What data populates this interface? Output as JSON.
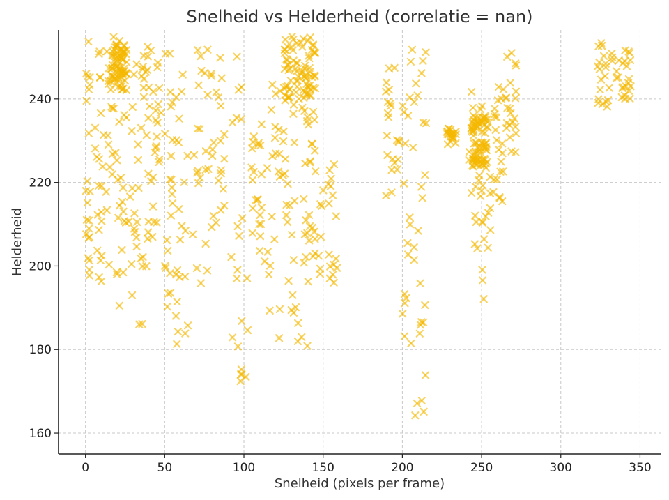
{
  "chart_data": {
    "type": "scatter",
    "title": "Snelheid vs Helderheid (correlatie = nan)",
    "xlabel": "Snelheid (pixels per frame)",
    "ylabel": "Helderheid",
    "xlim": [
      -17,
      363
    ],
    "ylim": [
      155,
      256.5
    ],
    "xticks": [
      0,
      50,
      100,
      150,
      200,
      250,
      300,
      350
    ],
    "yticks": [
      160,
      180,
      200,
      220,
      240
    ],
    "grid": true,
    "marker": "x",
    "color": "#f5b800",
    "clusters": [
      {
        "x": [
          0,
          3
        ],
        "y": [
          186,
          254
        ]
      },
      {
        "x": [
          6,
          12
        ],
        "y": [
          196,
          254
        ]
      },
      {
        "x": [
          13,
          19
        ],
        "y": [
          200,
          255
        ]
      },
      {
        "x": [
          19,
          26
        ],
        "y": [
          190,
          255
        ]
      },
      {
        "x": [
          27,
          36
        ],
        "y": [
          184,
          250
        ]
      },
      {
        "x": [
          35,
          41
        ],
        "y": [
          195,
          253
        ]
      },
      {
        "x": [
          41,
          48
        ],
        "y": [
          205,
          252
        ]
      },
      {
        "x": [
          50,
          55
        ],
        "y": [
          190,
          252
        ]
      },
      {
        "x": [
          57,
          66
        ],
        "y": [
          178,
          252
        ]
      },
      {
        "x": [
          67,
          78
        ],
        "y": [
          194,
          254
        ]
      },
      {
        "x": [
          78,
          88
        ],
        "y": [
          209,
          253
        ]
      },
      {
        "x": [
          92,
          103
        ],
        "y": [
          172,
          252
        ]
      },
      {
        "x": [
          104,
          112
        ],
        "y": [
          203,
          234
        ]
      },
      {
        "x": [
          113,
          123
        ],
        "y": [
          182,
          244
        ]
      },
      {
        "x": [
          124,
          132
        ],
        "y": [
          185,
          255
        ]
      },
      {
        "x": [
          132,
          141
        ],
        "y": [
          180,
          255
        ]
      },
      {
        "x": [
          141,
          148
        ],
        "y": [
          192,
          255
        ]
      },
      {
        "x": [
          148,
          160
        ],
        "y": [
          196,
          228
        ]
      },
      {
        "x": [
          189,
          198
        ],
        "y": [
          216,
          251
        ]
      },
      {
        "x": [
          200,
          208
        ],
        "y": [
          180,
          255
        ]
      },
      {
        "x": [
          208,
          215
        ],
        "y": [
          160,
          255
        ]
      },
      {
        "x": [
          228,
          234
        ],
        "y": [
          229,
          233
        ]
      },
      {
        "x": [
          242,
          250
        ],
        "y": [
          202,
          244
        ]
      },
      {
        "x": [
          250,
          256
        ],
        "y": [
          192,
          242
        ]
      },
      {
        "x": [
          256,
          264
        ],
        "y": [
          214,
          244
        ]
      },
      {
        "x": [
          265,
          272
        ],
        "y": [
          225,
          254
        ]
      },
      {
        "x": [
          323,
          333
        ],
        "y": [
          238,
          254
        ]
      },
      {
        "x": [
          333,
          345
        ],
        "y": [
          240,
          252
        ]
      }
    ],
    "dense_clusters": [
      {
        "x": [
          125,
          145
        ],
        "y": [
          240,
          255
        ]
      },
      {
        "x": [
          16,
          26
        ],
        "y": [
          242,
          254
        ]
      },
      {
        "x": [
          243,
          254
        ],
        "y": [
          224,
          236
        ]
      }
    ]
  }
}
